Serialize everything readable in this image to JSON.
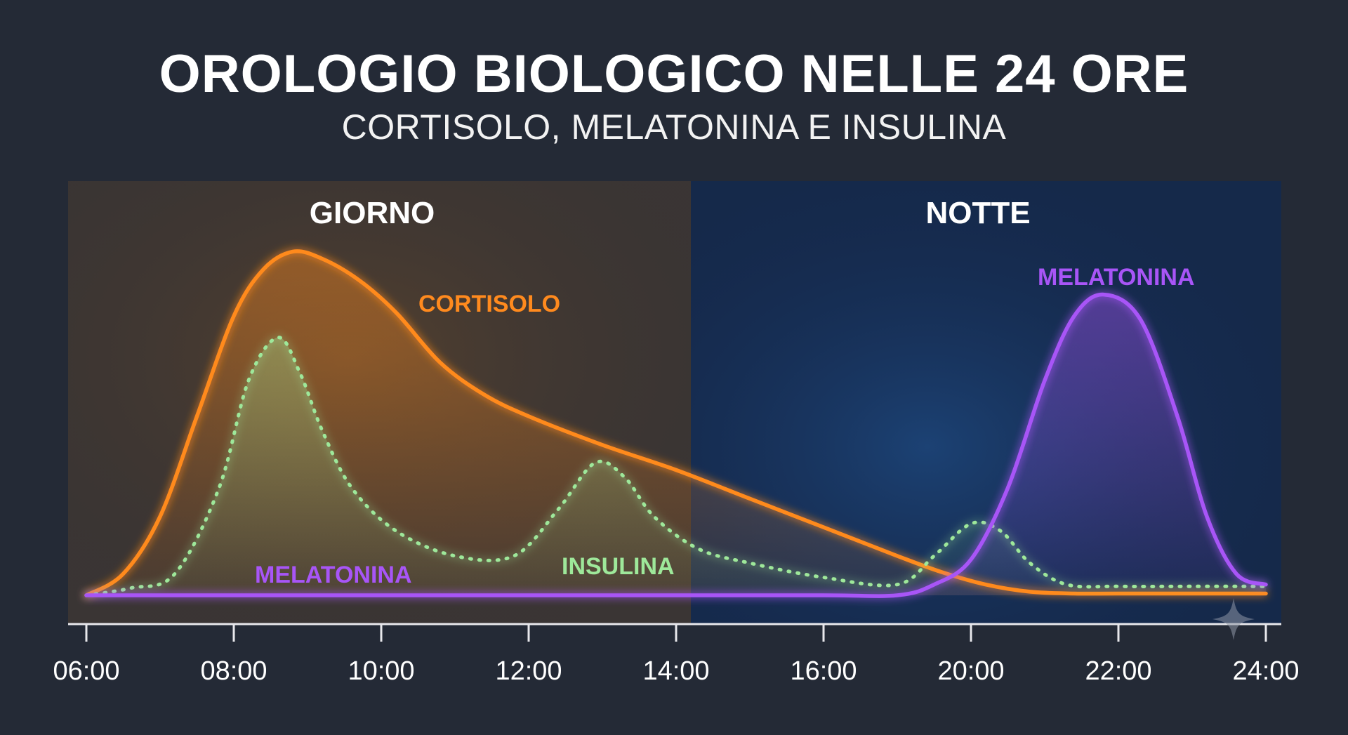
{
  "header": {
    "title": "OROLOGIO BIOLOGICO NELLE 24 ORE",
    "subtitle": "CORTISOLO, MELATONINA E INSULINA"
  },
  "chart_data": {
    "type": "line",
    "title": "OROLOGIO BIOLOGICO NELLE 24 ORE",
    "subtitle": "CORTISOLO, MELATONINA E INSULINA",
    "xlabel": "",
    "ylabel": "",
    "x_ticks": [
      "06:00",
      "08:00",
      "10:00",
      "12:00",
      "14:00",
      "16:00",
      "20:00",
      "22:00",
      "24:00"
    ],
    "x_domain": [
      0,
      16
    ],
    "y_domain": [
      0,
      100
    ],
    "grid": false,
    "periods": [
      {
        "label": "GIORNO",
        "from": 0,
        "to": 8.2,
        "color": "#3a3534"
      },
      {
        "label": "NOTTE",
        "from": 8.2,
        "to": 16.2,
        "color": "#15294a"
      }
    ],
    "series": [
      {
        "name": "CORTISOLO",
        "label_position": "peak-right",
        "color": "#ff8a1e",
        "style": "solid",
        "x": [
          0,
          0.5,
          1.0,
          1.5,
          2.0,
          2.4,
          2.8,
          3.2,
          3.7,
          4.2,
          4.8,
          5.4,
          6.0,
          7.0,
          8.0,
          9.0,
          10.0,
          11.0,
          11.6,
          12.2,
          12.8,
          13.4,
          14.0,
          15.0,
          16.0
        ],
        "y": [
          0,
          6,
          22,
          50,
          78,
          91,
          96,
          94,
          88,
          79,
          65,
          56,
          50,
          42,
          35,
          27,
          19,
          11,
          6.5,
          3,
          1,
          0.5,
          0.5,
          0.5,
          0.5
        ]
      },
      {
        "name": "INSULINA",
        "label_position": "middle",
        "color": "#9ee89a",
        "style": "dotted",
        "x": [
          0,
          0.6,
          1.2,
          1.8,
          2.2,
          2.6,
          2.9,
          3.2,
          3.6,
          4.2,
          5.0,
          5.8,
          6.4,
          6.9,
          7.3,
          7.7,
          8.3,
          9.0,
          10.0,
          11.0,
          11.5,
          12.0,
          12.4,
          12.8,
          13.3,
          14.0,
          15.0,
          16.0
        ],
        "y": [
          0,
          2,
          6,
          30,
          60,
          72,
          62,
          46,
          30,
          18,
          11,
          11,
          24,
          37,
          33,
          22,
          13,
          9,
          5,
          3,
          11,
          20,
          18,
          9,
          3,
          2.5,
          2.5,
          2.5
        ]
      },
      {
        "name": "MELATONINA",
        "label_position": "low-left-and-peak",
        "color": "#a855f7",
        "style": "solid",
        "x": [
          0,
          2,
          4,
          6,
          8,
          10,
          11.0,
          11.5,
          12.0,
          12.5,
          13.0,
          13.4,
          13.8,
          14.3,
          14.8,
          15.2,
          15.6,
          16.0
        ],
        "y": [
          0,
          0,
          0,
          0,
          0,
          0,
          0,
          3,
          10,
          30,
          60,
          78,
          84,
          77,
          50,
          22,
          6,
          3
        ]
      }
    ],
    "labels": {
      "cortisol": "CORTISOLO",
      "insulin": "INSULINA",
      "melatonin_low": "MELATONINA",
      "melatonin_peak": "MELATONINA",
      "day": "GIORNO",
      "night": "NOTTE"
    }
  }
}
